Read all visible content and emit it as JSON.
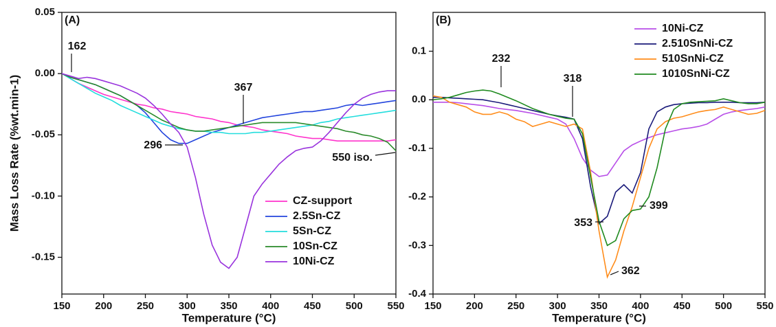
{
  "chart_data": [
    {
      "type": "line",
      "panel": "(A)",
      "ylabel": "Mass Loss Rate (%wt.min-1)",
      "xlabel": "Temperature (°C)",
      "xlim": [
        150,
        550
      ],
      "xticks": [
        150,
        200,
        250,
        300,
        350,
        400,
        450,
        500,
        550
      ],
      "ylim": [
        -0.18,
        0.05
      ],
      "yticks": [
        0.05,
        {
          "value": 0,
          "label": "0.00"
        },
        -0.05,
        {
          "value": -0.1,
          "label": "-0.10"
        },
        -0.15
      ],
      "legend": "lower right",
      "annotations": [
        "162",
        "367",
        "296",
        "550 iso."
      ],
      "x": [
        150,
        160,
        170,
        180,
        190,
        200,
        210,
        220,
        230,
        240,
        250,
        260,
        270,
        280,
        290,
        300,
        310,
        320,
        330,
        340,
        350,
        360,
        370,
        380,
        390,
        400,
        410,
        420,
        430,
        440,
        450,
        460,
        470,
        480,
        490,
        500,
        510,
        520,
        530,
        540,
        550
      ],
      "series": [
        {
          "name": "CZ-support",
          "color": "#ff33cc",
          "values": [
            0,
            -0.004,
            -0.008,
            -0.011,
            -0.014,
            -0.017,
            -0.019,
            -0.021,
            -0.023,
            -0.025,
            -0.026,
            -0.028,
            -0.029,
            -0.031,
            -0.032,
            -0.033,
            -0.035,
            -0.036,
            -0.037,
            -0.039,
            -0.04,
            -0.042,
            -0.043,
            -0.044,
            -0.046,
            -0.047,
            -0.048,
            -0.049,
            -0.051,
            -0.052,
            -0.053,
            -0.053,
            -0.054,
            -0.055,
            -0.055,
            -0.055,
            -0.055,
            -0.055,
            -0.055,
            -0.055,
            -0.054
          ]
        },
        {
          "name": "2.5Sn-CZ",
          "color": "#2244dd",
          "values": [
            0,
            -0.003,
            -0.005,
            -0.007,
            -0.009,
            -0.012,
            -0.015,
            -0.018,
            -0.022,
            -0.026,
            -0.032,
            -0.04,
            -0.048,
            -0.054,
            -0.057,
            -0.057,
            -0.054,
            -0.051,
            -0.048,
            -0.046,
            -0.044,
            -0.042,
            -0.04,
            -0.038,
            -0.036,
            -0.035,
            -0.034,
            -0.033,
            -0.032,
            -0.031,
            -0.031,
            -0.03,
            -0.029,
            -0.028,
            -0.026,
            -0.025,
            -0.026,
            -0.025,
            -0.024,
            -0.023,
            -0.022
          ]
        },
        {
          "name": "5Sn-CZ",
          "color": "#22dddd",
          "values": [
            0,
            -0.004,
            -0.008,
            -0.012,
            -0.016,
            -0.019,
            -0.022,
            -0.026,
            -0.029,
            -0.032,
            -0.035,
            -0.038,
            -0.041,
            -0.043,
            -0.045,
            -0.046,
            -0.047,
            -0.047,
            -0.048,
            -0.048,
            -0.049,
            -0.049,
            -0.049,
            -0.048,
            -0.048,
            -0.047,
            -0.046,
            -0.045,
            -0.044,
            -0.043,
            -0.042,
            -0.04,
            -0.039,
            -0.037,
            -0.036,
            -0.035,
            -0.034,
            -0.033,
            -0.032,
            -0.031,
            -0.03
          ]
        },
        {
          "name": "10Sn-CZ",
          "color": "#2a8a2a",
          "values": [
            0,
            -0.003,
            -0.005,
            -0.007,
            -0.009,
            -0.012,
            -0.015,
            -0.018,
            -0.022,
            -0.026,
            -0.03,
            -0.034,
            -0.038,
            -0.041,
            -0.044,
            -0.046,
            -0.047,
            -0.047,
            -0.046,
            -0.045,
            -0.044,
            -0.043,
            -0.042,
            -0.041,
            -0.04,
            -0.04,
            -0.04,
            -0.04,
            -0.04,
            -0.041,
            -0.042,
            -0.043,
            -0.044,
            -0.045,
            -0.047,
            -0.048,
            -0.05,
            -0.051,
            -0.053,
            -0.056,
            -0.063
          ]
        },
        {
          "name": "10Ni-CZ",
          "color": "#9933dd",
          "values": [
            0,
            -0.002,
            -0.004,
            -0.003,
            -0.004,
            -0.006,
            -0.008,
            -0.01,
            -0.013,
            -0.016,
            -0.02,
            -0.026,
            -0.033,
            -0.041,
            -0.048,
            -0.06,
            -0.085,
            -0.115,
            -0.14,
            -0.154,
            -0.159,
            -0.15,
            -0.125,
            -0.1,
            -0.09,
            -0.082,
            -0.074,
            -0.068,
            -0.063,
            -0.061,
            -0.06,
            -0.055,
            -0.048,
            -0.04,
            -0.032,
            -0.025,
            -0.02,
            -0.017,
            -0.015,
            -0.014,
            -0.014
          ]
        }
      ]
    },
    {
      "type": "line",
      "panel": "(B)",
      "xlabel": "Temperature (°C)",
      "xlim": [
        150,
        550
      ],
      "xticks": [
        150,
        200,
        250,
        300,
        350,
        400,
        450,
        500,
        550
      ],
      "ylim": [
        -0.4,
        0.18
      ],
      "yticks": [
        0.1,
        {
          "value": 0,
          "label": "0.0"
        },
        -0.1,
        -0.2,
        -0.3,
        -0.4
      ],
      "legend": "upper right",
      "annotations": [
        "232",
        "318",
        "353",
        "362",
        "399"
      ],
      "x": [
        150,
        160,
        170,
        180,
        190,
        200,
        210,
        220,
        230,
        240,
        250,
        260,
        270,
        280,
        290,
        300,
        310,
        320,
        330,
        340,
        350,
        360,
        370,
        380,
        390,
        400,
        410,
        420,
        430,
        440,
        450,
        460,
        470,
        480,
        490,
        500,
        510,
        520,
        530,
        540,
        550
      ],
      "series": [
        {
          "name": "10Ni-CZ",
          "color": "#b84ee8",
          "values": [
            -0.005,
            -0.005,
            -0.005,
            -0.006,
            -0.008,
            -0.01,
            -0.012,
            -0.015,
            -0.018,
            -0.02,
            -0.022,
            -0.025,
            -0.028,
            -0.032,
            -0.036,
            -0.04,
            -0.05,
            -0.08,
            -0.12,
            -0.145,
            -0.158,
            -0.155,
            -0.13,
            -0.105,
            -0.093,
            -0.085,
            -0.078,
            -0.072,
            -0.068,
            -0.064,
            -0.06,
            -0.058,
            -0.055,
            -0.05,
            -0.04,
            -0.03,
            -0.025,
            -0.022,
            -0.02,
            -0.018,
            -0.015
          ]
        },
        {
          "name": "2.510SnNi-CZ",
          "color": "#1a1a7a",
          "values": [
            0.005,
            0.005,
            0.004,
            0.003,
            0.002,
            0.001,
            0,
            -0.003,
            -0.006,
            -0.01,
            -0.014,
            -0.018,
            -0.022,
            -0.026,
            -0.03,
            -0.033,
            -0.036,
            -0.04,
            -0.08,
            -0.18,
            -0.255,
            -0.24,
            -0.19,
            -0.175,
            -0.192,
            -0.15,
            -0.06,
            -0.025,
            -0.015,
            -0.01,
            -0.008,
            -0.007,
            -0.006,
            -0.006,
            -0.005,
            -0.005,
            -0.005,
            -0.006,
            -0.006,
            -0.006,
            -0.005
          ]
        },
        {
          "name": "510SnNi-CZ",
          "color": "#ff8c1a",
          "values": [
            0.008,
            0.005,
            -0.005,
            -0.01,
            -0.015,
            -0.025,
            -0.03,
            -0.03,
            -0.025,
            -0.03,
            -0.04,
            -0.045,
            -0.055,
            -0.05,
            -0.045,
            -0.05,
            -0.055,
            -0.05,
            -0.06,
            -0.15,
            -0.27,
            -0.365,
            -0.33,
            -0.27,
            -0.22,
            -0.16,
            -0.1,
            -0.06,
            -0.045,
            -0.038,
            -0.035,
            -0.03,
            -0.025,
            -0.022,
            -0.02,
            -0.015,
            -0.02,
            -0.025,
            -0.03,
            -0.028,
            -0.022
          ]
        },
        {
          "name": "1010SnNi-CZ",
          "color": "#1f8a1f",
          "values": [
            0,
            0.002,
            0.005,
            0.01,
            0.015,
            0.018,
            0.02,
            0.018,
            0.012,
            0.005,
            -0.002,
            -0.01,
            -0.018,
            -0.024,
            -0.03,
            -0.034,
            -0.038,
            -0.04,
            -0.07,
            -0.16,
            -0.25,
            -0.3,
            -0.29,
            -0.245,
            -0.228,
            -0.225,
            -0.2,
            -0.14,
            -0.06,
            -0.02,
            -0.008,
            -0.005,
            -0.004,
            -0.003,
            -0.002,
            0.002,
            -0.002,
            -0.006,
            -0.008,
            -0.008,
            -0.005
          ]
        }
      ]
    }
  ]
}
